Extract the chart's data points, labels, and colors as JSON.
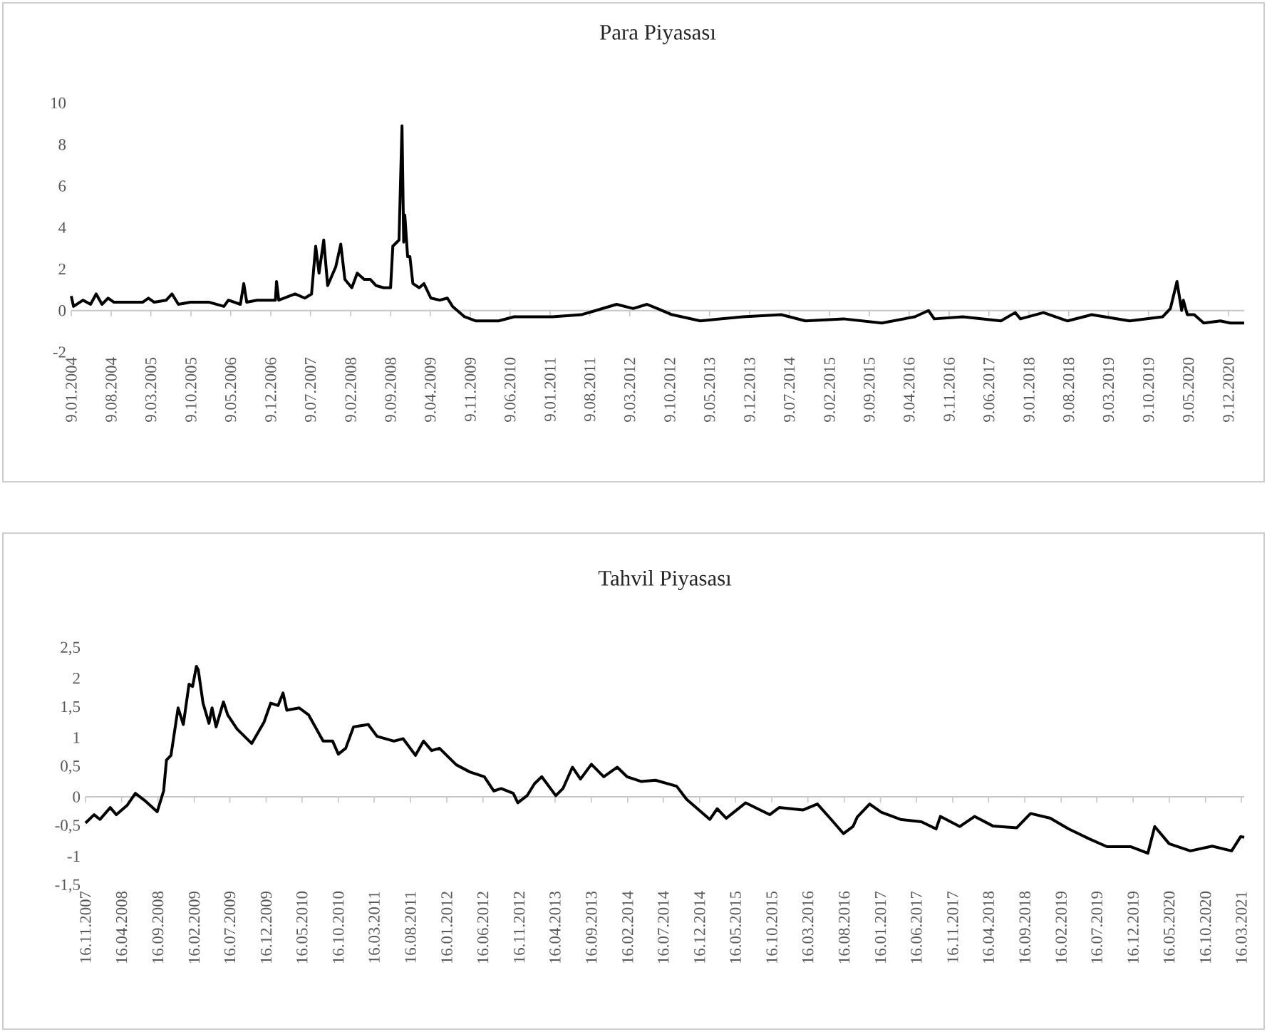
{
  "chart_data": [
    {
      "type": "line",
      "title": "Para Piyasası",
      "x": [
        "2004-01-09",
        "2004-01-21",
        "2004-03-12",
        "2004-04-21",
        "2004-05-21",
        "2004-06-21",
        "2004-07-24",
        "2004-08-24",
        "2005-01-24",
        "2005-02-24",
        "2005-03-27",
        "2005-05-30",
        "2005-06-30",
        "2005-08-03",
        "2005-10-06",
        "2006-01-15",
        "2006-04-03",
        "2006-04-27",
        "2006-06-30",
        "2006-07-18",
        "2006-08-03",
        "2006-09-27",
        "2007-01-03",
        "2007-01-09",
        "2007-01-21",
        "2007-04-18",
        "2007-06-09",
        "2007-07-15",
        "2007-08-06",
        "2007-08-24",
        "2007-09-18",
        "2007-10-09",
        "2007-11-21",
        "2007-12-18",
        "2008-01-09",
        "2008-02-15",
        "2008-03-15",
        "2008-04-21",
        "2008-05-24",
        "2008-06-24",
        "2008-08-03",
        "2008-09-09",
        "2008-09-21",
        "2008-10-24",
        "2008-11-09",
        "2008-11-18",
        "2008-11-24",
        "2008-12-09",
        "2008-12-21",
        "2009-01-06",
        "2009-02-09",
        "2009-03-06",
        "2009-04-12",
        "2009-05-30",
        "2009-07-09",
        "2009-08-06",
        "2009-10-09",
        "2009-12-09",
        "2010-04-09",
        "2010-06-30",
        "2011-01-21",
        "2011-06-24",
        "2011-09-09",
        "2011-12-30",
        "2012-03-27",
        "2012-06-09",
        "2012-08-03",
        "2012-10-21",
        "2013-03-21",
        "2013-11-03",
        "2014-05-27",
        "2014-10-03",
        "2015-04-24",
        "2015-11-15",
        "2016-05-09",
        "2016-07-21",
        "2016-08-21",
        "2017-01-21",
        "2017-08-12",
        "2017-10-27",
        "2017-11-24",
        "2018-03-27",
        "2018-08-03",
        "2018-12-09",
        "2019-06-30",
        "2019-12-24",
        "2020-02-03",
        "2020-03-09",
        "2020-04-03",
        "2020-04-12",
        "2020-05-03",
        "2020-06-09",
        "2020-07-30",
        "2020-10-27",
        "2020-12-18",
        "2021-03-03"
      ],
      "series": [
        {
          "color": "#000000",
          "values": [
            0.7,
            0.2,
            0.5,
            0.3,
            0.8,
            0.3,
            0.6,
            0.4,
            0.4,
            0.6,
            0.4,
            0.5,
            0.8,
            0.3,
            0.4,
            0.4,
            0.2,
            0.5,
            0.3,
            1.3,
            0.4,
            0.5,
            0.5,
            1.4,
            0.5,
            0.8,
            0.6,
            0.8,
            3.1,
            1.8,
            3.4,
            1.2,
            2.1,
            3.2,
            1.5,
            1.1,
            1.8,
            1.5,
            1.5,
            1.2,
            1.1,
            1.1,
            3.1,
            3.4,
            8.9,
            3.3,
            4.6,
            2.6,
            2.6,
            1.3,
            1.1,
            1.3,
            0.6,
            0.5,
            0.6,
            0.2,
            -0.3,
            -0.5,
            -0.5,
            -0.3,
            -0.3,
            -0.2,
            0.0,
            0.3,
            0.1,
            0.3,
            0.1,
            -0.2,
            -0.5,
            -0.3,
            -0.2,
            -0.5,
            -0.4,
            -0.6,
            -0.3,
            0.0,
            -0.4,
            -0.3,
            -0.5,
            -0.1,
            -0.4,
            -0.1,
            -0.5,
            -0.2,
            -0.5,
            -0.3,
            0.1,
            1.4,
            0.0,
            0.5,
            -0.2,
            -0.2,
            -0.6,
            -0.5,
            -0.6,
            -0.6
          ]
        }
      ],
      "xlim": [
        "2004-01-09",
        "2021-03-03"
      ],
      "ylim": [
        -2,
        10
      ],
      "yticks": [
        -2,
        0,
        2,
        4,
        6,
        8,
        10
      ],
      "xticks": [
        {
          "value": "2004-01-09",
          "label": "9.01.2004"
        },
        {
          "value": "2004-08-09",
          "label": "9.08.2004"
        },
        {
          "value": "2005-03-09",
          "label": "9.03.2005"
        },
        {
          "value": "2005-10-09",
          "label": "9.10.2005"
        },
        {
          "value": "2006-05-09",
          "label": "9.05.2006"
        },
        {
          "value": "2006-12-09",
          "label": "9.12.2006"
        },
        {
          "value": "2007-07-09",
          "label": "9.07.2007"
        },
        {
          "value": "2008-02-09",
          "label": "9.02.2008"
        },
        {
          "value": "2008-09-09",
          "label": "9.09.2008"
        },
        {
          "value": "2009-04-09",
          "label": "9.04.2009"
        },
        {
          "value": "2009-11-09",
          "label": "9.11.2009"
        },
        {
          "value": "2010-06-09",
          "label": "9.06.2010"
        },
        {
          "value": "2011-01-09",
          "label": "9.01.2011"
        },
        {
          "value": "2011-08-09",
          "label": "9.08.2011"
        },
        {
          "value": "2012-03-09",
          "label": "9.03.2012"
        },
        {
          "value": "2012-10-09",
          "label": "9.10.2012"
        },
        {
          "value": "2013-05-09",
          "label": "9.05.2013"
        },
        {
          "value": "2013-12-09",
          "label": "9.12.2013"
        },
        {
          "value": "2014-07-09",
          "label": "9.07.2014"
        },
        {
          "value": "2015-02-09",
          "label": "9.02.2015"
        },
        {
          "value": "2015-09-09",
          "label": "9.09.2015"
        },
        {
          "value": "2016-04-09",
          "label": "9.04.2016"
        },
        {
          "value": "2016-11-09",
          "label": "9.11.2016"
        },
        {
          "value": "2017-06-09",
          "label": "9.06.2017"
        },
        {
          "value": "2018-01-09",
          "label": "9.01.2018"
        },
        {
          "value": "2018-08-09",
          "label": "9.08.2018"
        },
        {
          "value": "2019-03-09",
          "label": "9.03.2019"
        },
        {
          "value": "2019-10-09",
          "label": "9.10.2019"
        },
        {
          "value": "2020-05-09",
          "label": "9.05.2020"
        },
        {
          "value": "2020-12-09",
          "label": "9.12.2020"
        }
      ]
    },
    {
      "type": "line",
      "title": "Tahvil Piyasası",
      "x": [
        "2007-11-16",
        "2007-12-22",
        "2008-01-16",
        "2008-02-28",
        "2008-03-25",
        "2008-05-10",
        "2008-06-13",
        "2008-07-22",
        "2008-09-13",
        "2008-10-10",
        "2008-10-22",
        "2008-11-10",
        "2008-12-10",
        "2009-01-01",
        "2009-01-25",
        "2009-02-09",
        "2009-02-25",
        "2009-03-05",
        "2009-03-25",
        "2009-04-19",
        "2009-05-02",
        "2009-05-19",
        "2009-06-19",
        "2009-07-07",
        "2009-08-16",
        "2009-10-16",
        "2009-12-07",
        "2010-01-04",
        "2010-02-04",
        "2010-02-25",
        "2010-03-13",
        "2010-05-04",
        "2010-06-13",
        "2010-08-13",
        "2010-09-22",
        "2010-10-16",
        "2010-11-16",
        "2010-12-19",
        "2011-02-19",
        "2011-03-28",
        "2011-06-07",
        "2011-07-16",
        "2011-09-06",
        "2011-10-10",
        "2011-11-13",
        "2011-12-16",
        "2012-02-25",
        "2012-04-22",
        "2012-06-22",
        "2012-08-01",
        "2012-09-01",
        "2012-10-22",
        "2012-11-10",
        "2012-12-19",
        "2013-01-19",
        "2013-02-19",
        "2013-04-19",
        "2013-05-19",
        "2013-06-28",
        "2013-08-01",
        "2013-09-16",
        "2013-11-07",
        "2014-01-03",
        "2014-02-13",
        "2014-04-13",
        "2014-06-13",
        "2014-09-10",
        "2014-10-22",
        "2015-01-28",
        "2015-02-28",
        "2015-04-07",
        "2015-06-28",
        "2015-10-07",
        "2015-11-16",
        "2016-02-25",
        "2016-04-25",
        "2016-06-22",
        "2016-08-13",
        "2016-09-22",
        "2016-10-10",
        "2016-12-01",
        "2017-01-19",
        "2017-04-10",
        "2017-07-07",
        "2017-09-07",
        "2017-09-25",
        "2017-12-16",
        "2018-02-16",
        "2018-05-04",
        "2018-08-13",
        "2018-10-10",
        "2019-01-01",
        "2019-03-19",
        "2019-06-10",
        "2019-08-28",
        "2019-12-07",
        "2020-02-16",
        "2020-03-16",
        "2020-05-16",
        "2020-08-13",
        "2020-11-13",
        "2021-02-03",
        "2021-03-13",
        "2021-03-28"
      ],
      "series": [
        {
          "color": "#000000",
          "values": [
            -0.44,
            -0.3,
            -0.38,
            -0.18,
            -0.3,
            -0.14,
            0.06,
            -0.06,
            -0.25,
            0.1,
            0.62,
            0.7,
            1.5,
            1.22,
            1.9,
            1.86,
            2.2,
            2.14,
            1.58,
            1.24,
            1.5,
            1.18,
            1.6,
            1.38,
            1.14,
            0.9,
            1.26,
            1.58,
            1.54,
            1.75,
            1.46,
            1.5,
            1.38,
            0.94,
            0.94,
            0.72,
            0.82,
            1.18,
            1.22,
            1.02,
            0.94,
            0.98,
            0.7,
            0.94,
            0.78,
            0.82,
            0.54,
            0.42,
            0.34,
            0.1,
            0.14,
            0.06,
            -0.1,
            0.02,
            0.22,
            0.34,
            0.02,
            0.14,
            0.5,
            0.3,
            0.55,
            0.34,
            0.5,
            0.34,
            0.26,
            0.28,
            0.18,
            -0.04,
            -0.38,
            -0.2,
            -0.36,
            -0.1,
            -0.3,
            -0.18,
            -0.22,
            -0.12,
            -0.38,
            -0.62,
            -0.5,
            -0.34,
            -0.12,
            -0.26,
            -0.38,
            -0.42,
            -0.54,
            -0.33,
            -0.5,
            -0.33,
            -0.49,
            -0.52,
            -0.28,
            -0.36,
            -0.54,
            -0.7,
            -0.84,
            -0.84,
            -0.95,
            -0.5,
            -0.79,
            -0.91,
            -0.83,
            -0.91,
            -0.67,
            -0.68
          ]
        }
      ],
      "xlim": [
        "2007-11-16",
        "2021-03-28"
      ],
      "ylim": [
        -1.5,
        2.5
      ],
      "yticks": [
        {
          "value": -1.5,
          "label": "-1,5"
        },
        -1,
        {
          "value": -0.5,
          "label": "-0,5"
        },
        0,
        {
          "value": 0.5,
          "label": "0,5"
        },
        1,
        {
          "value": 1.5,
          "label": "1,5"
        },
        2,
        {
          "value": 2.5,
          "label": "2,5"
        }
      ],
      "xticks": [
        {
          "value": "2007-11-16",
          "label": "16.11.2007"
        },
        {
          "value": "2008-04-16",
          "label": "16.04.2008"
        },
        {
          "value": "2008-09-16",
          "label": "16.09.2008"
        },
        {
          "value": "2009-02-16",
          "label": "16.02.2009"
        },
        {
          "value": "2009-07-16",
          "label": "16.07.2009"
        },
        {
          "value": "2009-12-16",
          "label": "16.12.2009"
        },
        {
          "value": "2010-05-16",
          "label": "16.05.2010"
        },
        {
          "value": "2010-10-16",
          "label": "16.10.2010"
        },
        {
          "value": "2011-03-16",
          "label": "16.03.2011"
        },
        {
          "value": "2011-08-16",
          "label": "16.08.2011"
        },
        {
          "value": "2012-01-16",
          "label": "16.01.2012"
        },
        {
          "value": "2012-06-16",
          "label": "16.06.2012"
        },
        {
          "value": "2012-11-16",
          "label": "16.11.2012"
        },
        {
          "value": "2013-04-16",
          "label": "16.04.2013"
        },
        {
          "value": "2013-09-16",
          "label": "16.09.2013"
        },
        {
          "value": "2014-02-16",
          "label": "16.02.2014"
        },
        {
          "value": "2014-07-16",
          "label": "16.07.2014"
        },
        {
          "value": "2014-12-16",
          "label": "16.12.2014"
        },
        {
          "value": "2015-05-16",
          "label": "16.05.2015"
        },
        {
          "value": "2015-10-16",
          "label": "16.10.2015"
        },
        {
          "value": "2016-03-16",
          "label": "16.03.2016"
        },
        {
          "value": "2016-08-16",
          "label": "16.08.2016"
        },
        {
          "value": "2017-01-16",
          "label": "16.01.2017"
        },
        {
          "value": "2017-06-16",
          "label": "16.06.2017"
        },
        {
          "value": "2017-11-16",
          "label": "16.11.2017"
        },
        {
          "value": "2018-04-16",
          "label": "16.04.2018"
        },
        {
          "value": "2018-09-16",
          "label": "16.09.2018"
        },
        {
          "value": "2019-02-16",
          "label": "16.02.2019"
        },
        {
          "value": "2019-07-16",
          "label": "16.07.2019"
        },
        {
          "value": "2019-12-16",
          "label": "16.12.2019"
        },
        {
          "value": "2020-05-16",
          "label": "16.05.2020"
        },
        {
          "value": "2020-10-16",
          "label": "16.10.2020"
        },
        {
          "value": "2021-03-16",
          "label": "16.03.2021"
        }
      ]
    }
  ]
}
